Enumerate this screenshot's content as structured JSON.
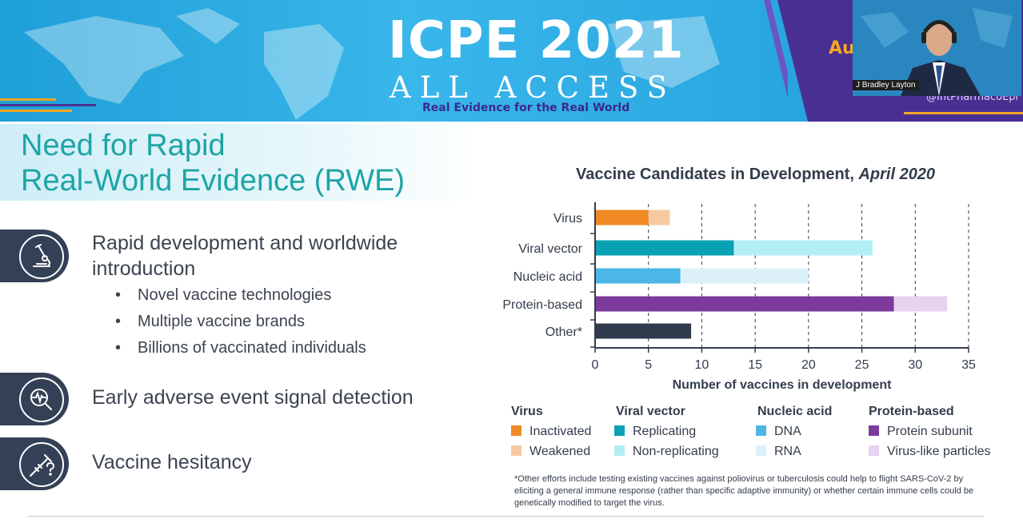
{
  "banner": {
    "title": "ICPE 2021",
    "subtitle": "ALL ACCESS",
    "tagline": "Real Evidence for the Real World",
    "partial_text": "Au",
    "handle": "@IntPharmacoEpi"
  },
  "webcam": {
    "speaker_name": "J Bradley Layton"
  },
  "slide": {
    "heading_line1": "Need for Rapid",
    "heading_line2": "Real-World Evidence (RWE)",
    "points": [
      {
        "icon": "microscope-icon",
        "text_line1": "Rapid development and worldwide",
        "text_line2": "introduction"
      },
      {
        "icon": "magnifier-signal-icon",
        "text_line1": "Early adverse event signal detection"
      },
      {
        "icon": "question-syringe-icon",
        "text_line1": "Vaccine hesitancy"
      }
    ],
    "sub_bullets": [
      "Novel vaccine technologies",
      "Multiple vaccine brands",
      "Billions of vaccinated individuals"
    ],
    "bullet_char": "•"
  },
  "chart_data": {
    "type": "bar",
    "orientation": "horizontal-stacked",
    "title": "Vaccine Candidates in Development,",
    "title_italic": "April 2020",
    "xlabel": "Number of vaccines in development",
    "xlim": [
      0,
      35
    ],
    "xticks": [
      0,
      5,
      10,
      15,
      20,
      25,
      30,
      35
    ],
    "grid": "vertical dashed",
    "categories": [
      "Virus",
      "Viral vector",
      "Nucleic acid",
      "Protein-based",
      "Other*"
    ],
    "bars": [
      {
        "category": "Virus",
        "segments": [
          {
            "name": "Inactivated",
            "value": 5,
            "color": "#f08a24"
          },
          {
            "name": "Weakened",
            "value": 2,
            "color": "#f7c9a0"
          }
        ]
      },
      {
        "category": "Viral vector",
        "segments": [
          {
            "name": "Replicating",
            "value": 13,
            "color": "#0aa1b5"
          },
          {
            "name": "Non-replicating",
            "value": 13,
            "color": "#b3eef5"
          }
        ]
      },
      {
        "category": "Nucleic acid",
        "segments": [
          {
            "name": "DNA",
            "value": 8,
            "color": "#4cb6e6"
          },
          {
            "name": "RNA",
            "value": 12,
            "color": "#dcf0f9"
          }
        ]
      },
      {
        "category": "Protein-based",
        "segments": [
          {
            "name": "Protein subunit",
            "value": 28,
            "color": "#7b3a9c"
          },
          {
            "name": "Virus-like particles",
            "value": 5,
            "color": "#e6d3ef"
          }
        ]
      },
      {
        "category": "Other*",
        "segments": [
          {
            "name": "Other",
            "value": 9,
            "color": "#2f3a4d"
          }
        ]
      }
    ],
    "legend": [
      {
        "heading": "Virus",
        "items": [
          {
            "label": "Inactivated",
            "color": "#f08a24"
          },
          {
            "label": "Weakened",
            "color": "#f7c9a0"
          }
        ]
      },
      {
        "heading": "Viral vector",
        "items": [
          {
            "label": "Replicating",
            "color": "#0aa1b5"
          },
          {
            "label": "Non-replicating",
            "color": "#b3eef5"
          }
        ]
      },
      {
        "heading": "Nucleic acid",
        "items": [
          {
            "label": "DNA",
            "color": "#4cb6e6"
          },
          {
            "label": "RNA",
            "color": "#dcf0f9"
          }
        ]
      },
      {
        "heading": "Protein-based",
        "items": [
          {
            "label": "Protein subunit",
            "color": "#7b3a9c"
          },
          {
            "label": "Virus-like particles",
            "color": "#e6d3ef"
          }
        ]
      }
    ],
    "footnote": "*Other efforts include testing existing vaccines against poliovirus or tuberculosis could help to flight SARS-CoV-2 by eliciting a general immune response (rather than specific adaptive immunity) or whether certain immune cells could be genetically modified to target the virus."
  },
  "colors": {
    "heading": "#1ea4a6",
    "icon_tab": "#344055",
    "banner_purple": "#4a2f93",
    "banner_blue": "#2aa7e0"
  }
}
